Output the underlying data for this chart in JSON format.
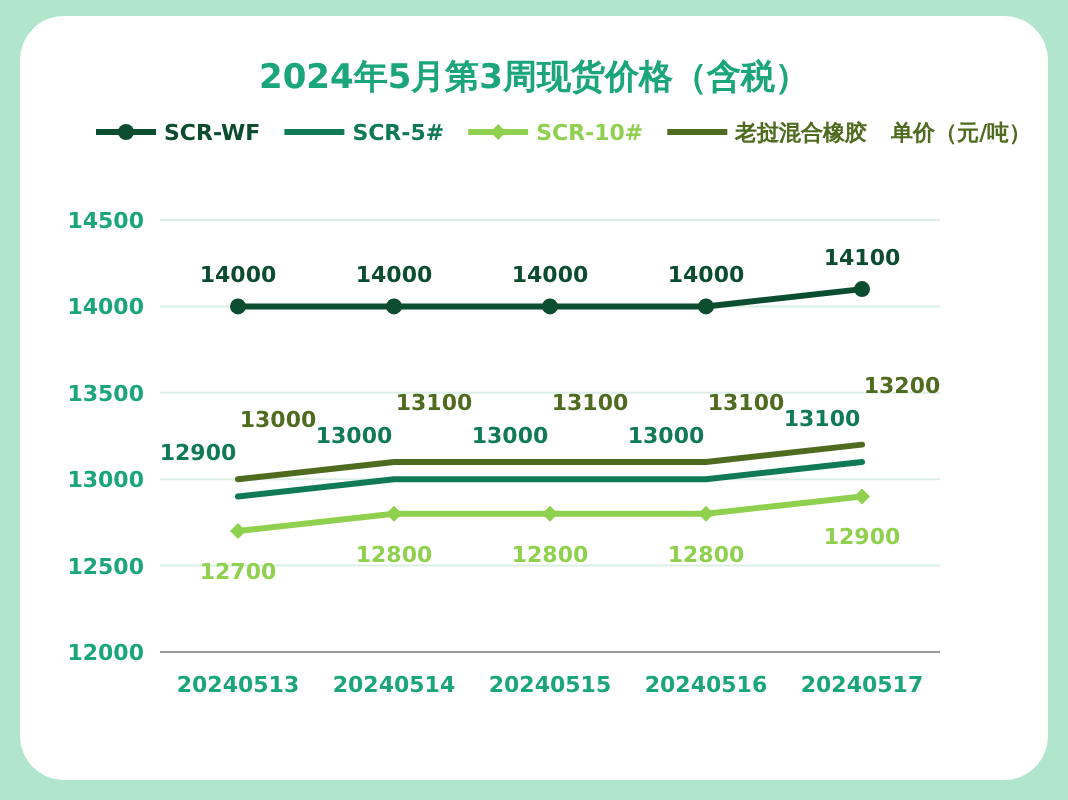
{
  "chart_data": {
    "type": "line",
    "title": "2024年5月第3周现货价格（含税）",
    "ylabel": "单价（元/吨）",
    "categories": [
      "20240513",
      "20240514",
      "20240515",
      "20240516",
      "20240517"
    ],
    "series": [
      {
        "name": "SCR-WF",
        "color": "#0b4d2e",
        "marker": "circle",
        "values": [
          14000,
          14000,
          14000,
          14000,
          14100
        ]
      },
      {
        "name": "SCR-5#",
        "color": "#0f7a55",
        "marker": "none",
        "values": [
          12900,
          13000,
          13000,
          13000,
          13100
        ]
      },
      {
        "name": "SCR-10#",
        "color": "#8fd14f",
        "marker": "diamond",
        "values": [
          12700,
          12800,
          12800,
          12800,
          12900
        ]
      },
      {
        "name": "老挝混合橡胶",
        "color": "#4f6b1f",
        "marker": "none",
        "values": [
          13000,
          13100,
          13100,
          13100,
          13200
        ]
      }
    ],
    "ylim": [
      12000,
      14500
    ],
    "yticks": [
      12000,
      12500,
      13000,
      13500,
      14000,
      14500
    ],
    "grid": "y",
    "legend": "top",
    "data_labels": true
  }
}
